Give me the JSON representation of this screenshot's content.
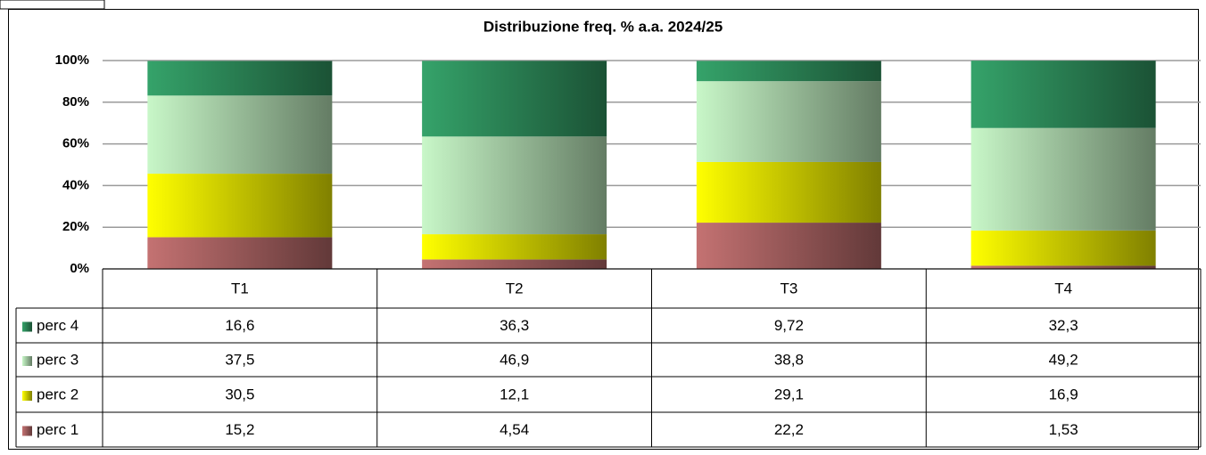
{
  "chart_data": {
    "type": "bar",
    "stacked": true,
    "title": "Distribuzione freq. % a.a. 2024/25",
    "categories": [
      "T1",
      "T2",
      "T3",
      "T4"
    ],
    "series": [
      {
        "name": "perc 1",
        "color": "#c47272",
        "values": [
          15.2,
          4.54,
          22.2,
          1.53
        ],
        "value_labels": [
          "15,2",
          "4,54",
          "22,2",
          "1,53"
        ]
      },
      {
        "name": "perc 2",
        "color": "#ffff00",
        "values": [
          30.5,
          12.1,
          29.1,
          16.9
        ],
        "value_labels": [
          "30,5",
          "12,1",
          "29,1",
          "16,9"
        ]
      },
      {
        "name": "perc 3",
        "color": "#c8f7c8",
        "values": [
          37.5,
          46.9,
          38.8,
          49.2
        ],
        "value_labels": [
          "37,5",
          "46,9",
          "38,8",
          "49,2"
        ]
      },
      {
        "name": "perc 4",
        "color": "#35a36a",
        "values": [
          16.6,
          36.3,
          9.72,
          32.3
        ],
        "value_labels": [
          "16,6",
          "36,3",
          "9,72",
          "32,3"
        ]
      }
    ],
    "ylim": [
      0,
      100
    ],
    "yticks": [
      {
        "value": 0,
        "label": "0%"
      },
      {
        "value": 20,
        "label": "20%"
      },
      {
        "value": 40,
        "label": "40%"
      },
      {
        "value": 60,
        "label": "60%"
      },
      {
        "value": 80,
        "label": "80%"
      },
      {
        "value": 100,
        "label": "100%"
      }
    ],
    "grid": true
  }
}
